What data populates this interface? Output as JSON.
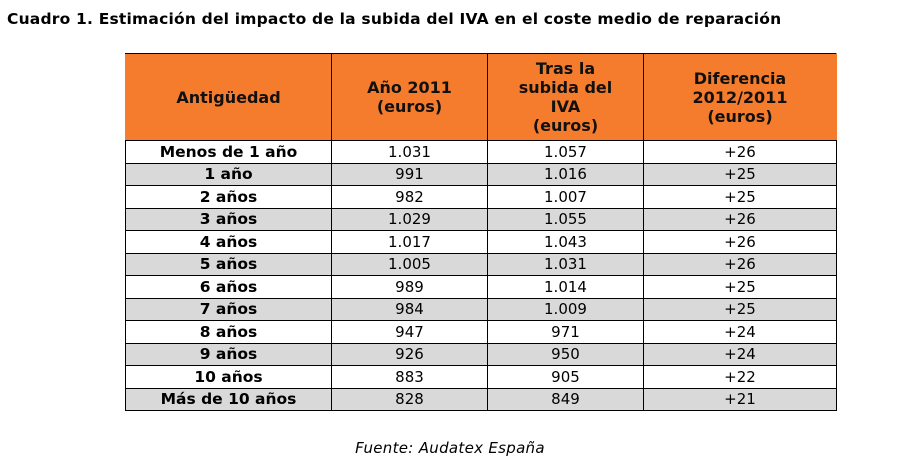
{
  "title": "Cuadro 1. Estimación del impacto de la subida del IVA en el coste medio de reparación",
  "table": {
    "headers": [
      [
        "Antigüedad"
      ],
      [
        "Año 2011",
        "(euros)"
      ],
      [
        "Tras la",
        "subida del",
        "IVA",
        "(euros)"
      ],
      [
        "Diferencia",
        "2012/2011",
        "(euros)"
      ]
    ],
    "rows": [
      [
        "Menos de 1 año",
        "1.031",
        "1.057",
        "+26"
      ],
      [
        "1 año",
        "991",
        "1.016",
        "+25"
      ],
      [
        "2 años",
        "982",
        "1.007",
        "+25"
      ],
      [
        "3 años",
        "1.029",
        "1.055",
        "+26"
      ],
      [
        "4 años",
        "1.017",
        "1.043",
        "+26"
      ],
      [
        "5 años",
        "1.005",
        "1.031",
        "+26"
      ],
      [
        "6 años",
        "989",
        "1.014",
        "+25"
      ],
      [
        "7 años",
        "984",
        "1.009",
        "+25"
      ],
      [
        "8 años",
        "947",
        "971",
        "+24"
      ],
      [
        "9 años",
        "926",
        "950",
        "+24"
      ],
      [
        "10 años",
        "883",
        "905",
        "+22"
      ],
      [
        "Más de 10 años",
        "828",
        "849",
        "+21"
      ]
    ]
  },
  "source": "Fuente: Audatex España",
  "colors": {
    "header_background": "#f47c2c",
    "shaded_row": "#d9d9d9"
  }
}
